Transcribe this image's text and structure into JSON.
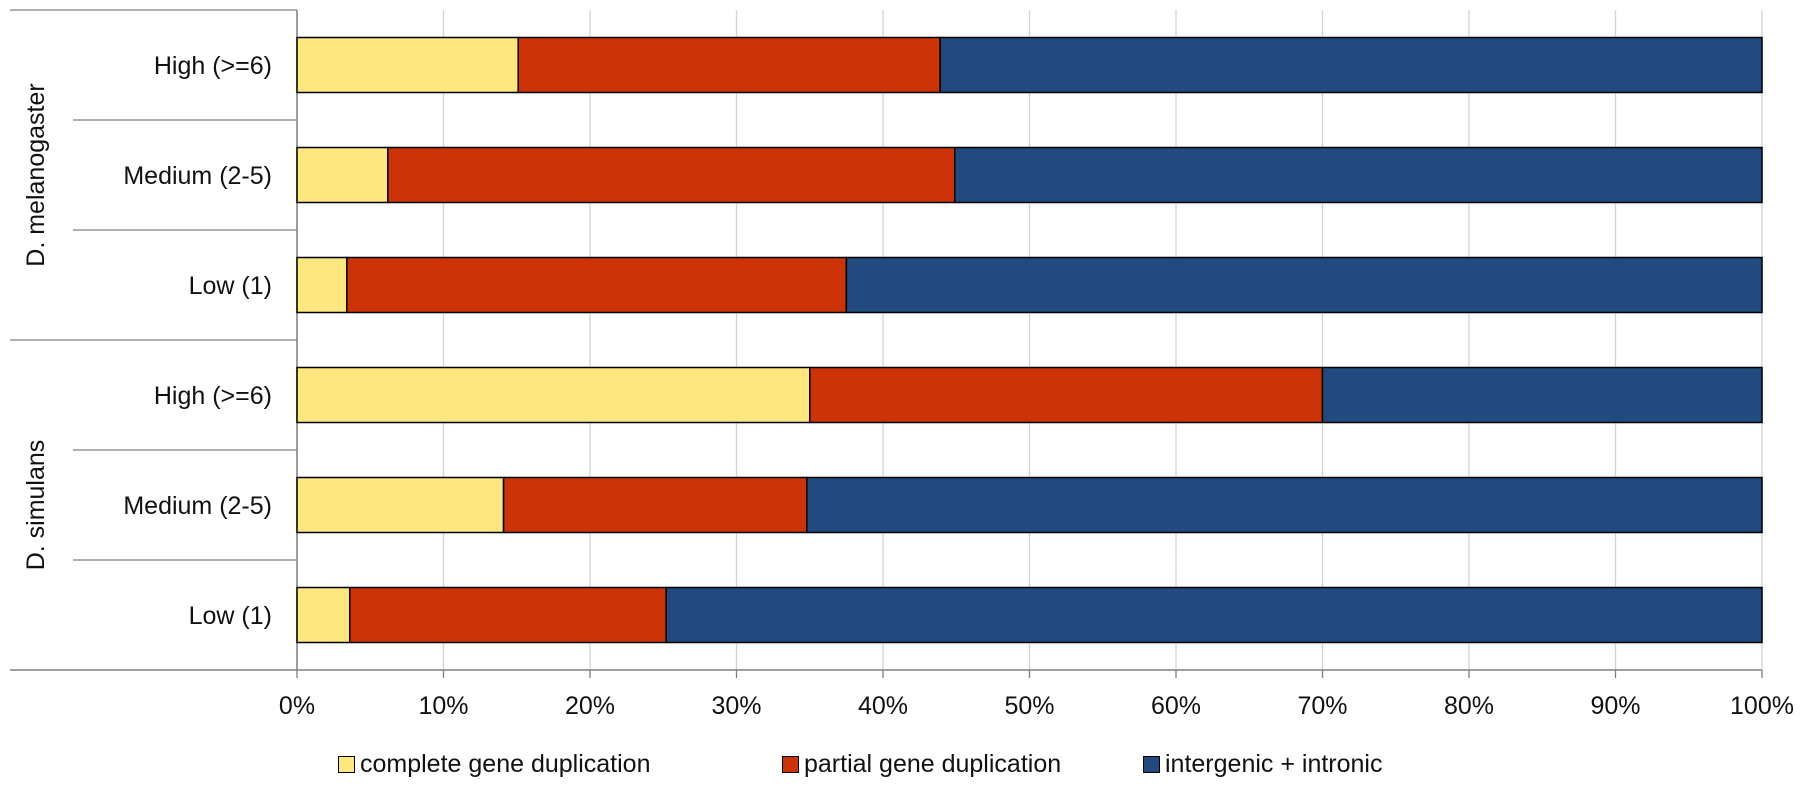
{
  "chart_data": {
    "type": "bar",
    "orientation": "horizontal",
    "stacked": true,
    "xlim": [
      0,
      100
    ],
    "x_ticks": [
      "0%",
      "10%",
      "20%",
      "30%",
      "40%",
      "50%",
      "60%",
      "70%",
      "80%",
      "90%",
      "100%"
    ],
    "grid": true,
    "legend_position": "bottom",
    "groups": [
      {
        "label": "D. melanogaster",
        "categories": [
          {
            "label": "High (>=6)",
            "values": [
              15.1,
              28.8,
              56.1
            ]
          },
          {
            "label": "Medium (2-5)",
            "values": [
              6.2,
              38.7,
              55.1
            ]
          },
          {
            "label": "Low (1)",
            "values": [
              3.4,
              34.1,
              62.5
            ]
          }
        ]
      },
      {
        "label": "D. simulans",
        "categories": [
          {
            "label": "High (>=6)",
            "values": [
              35.0,
              35.0,
              30.0
            ]
          },
          {
            "label": "Medium (2-5)",
            "values": [
              14.1,
              20.7,
              65.2
            ]
          },
          {
            "label": "Low (1)",
            "values": [
              3.6,
              21.6,
              74.8
            ]
          }
        ]
      }
    ],
    "series": [
      {
        "name": "complete gene duplication",
        "color": "#FDE77E"
      },
      {
        "name": "partial gene duplication",
        "color": "#CC3306"
      },
      {
        "name": "intergenic + intronic",
        "color": "#234A7E"
      }
    ]
  }
}
